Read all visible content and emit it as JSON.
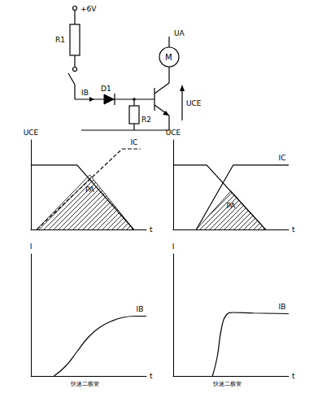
{
  "circuit": {
    "supply": "+6V",
    "resistor_1": "R1",
    "base_current": "IB",
    "diode": "D1",
    "resistor_2": "R2",
    "motor": "M",
    "motor_voltage": "UA",
    "collector_emitter_voltage": "UCE"
  },
  "chart_data": [
    {
      "type": "line",
      "y_label": "UCE",
      "x_label": "t",
      "xlim": [
        0,
        10
      ],
      "ylim": [
        0,
        10
      ],
      "tick_labels": false,
      "grid": false,
      "series": [
        {
          "x": [
            0,
            4.0,
            8.9
          ],
          "values": [
            7.2,
            7.2,
            0
          ],
          "line_style": "solid"
        },
        {
          "name": "IC",
          "x": [
            0.5,
            7.9,
            9.5
          ],
          "values": [
            0,
            9.0,
            9.0
          ],
          "line_style": "dashed"
        },
        {
          "name": "PA",
          "type": "area",
          "x": [
            0.5,
            5.1,
            8.9
          ],
          "values": [
            0,
            6.1,
            0
          ],
          "line_style": "solid"
        }
      ]
    },
    {
      "type": "line",
      "y_label": "UCE",
      "x_label": "t",
      "xlim": [
        0,
        10
      ],
      "ylim": [
        0,
        10
      ],
      "tick_labels": false,
      "grid": false,
      "series": [
        {
          "x": [
            0,
            2.9,
            8.0
          ],
          "values": [
            7.2,
            7.2,
            0
          ],
          "line_style": "solid"
        },
        {
          "name": "IC",
          "x": [
            2.0,
            5.2,
            10
          ],
          "values": [
            0,
            7.2,
            7.2
          ],
          "line_style": "solid"
        },
        {
          "name": "PA",
          "type": "area",
          "x": [
            2.0,
            5.0,
            8.0
          ],
          "values": [
            0,
            4.3,
            0
          ],
          "line_style": "solid"
        }
      ]
    },
    {
      "type": "line",
      "y_label": "I",
      "x_label": "t",
      "annotation": "快速二极管",
      "xlim": [
        0,
        10
      ],
      "ylim": [
        0,
        10
      ],
      "tick_labels": false,
      "grid": false,
      "series": [
        {
          "name": "IB",
          "x": [
            2,
            3,
            4,
            5,
            6,
            7,
            8,
            9,
            10
          ],
          "values": [
            0,
            0.8,
            2.0,
            3.2,
            4.0,
            4.5,
            4.8,
            4.9,
            4.9
          ],
          "line_style": "solid"
        }
      ]
    },
    {
      "type": "line",
      "y_label": "I",
      "x_label": "t",
      "annotation": "快速二极管",
      "xlim": [
        0,
        10
      ],
      "ylim": [
        0,
        10
      ],
      "tick_labels": false,
      "grid": false,
      "series": [
        {
          "name": "IB",
          "x": [
            3.4,
            3.8,
            4.2,
            4.6,
            5.2,
            7.0,
            10
          ],
          "values": [
            0,
            1.5,
            4.0,
            5.0,
            5.2,
            5.15,
            5.1
          ],
          "line_style": "solid"
        }
      ]
    }
  ]
}
